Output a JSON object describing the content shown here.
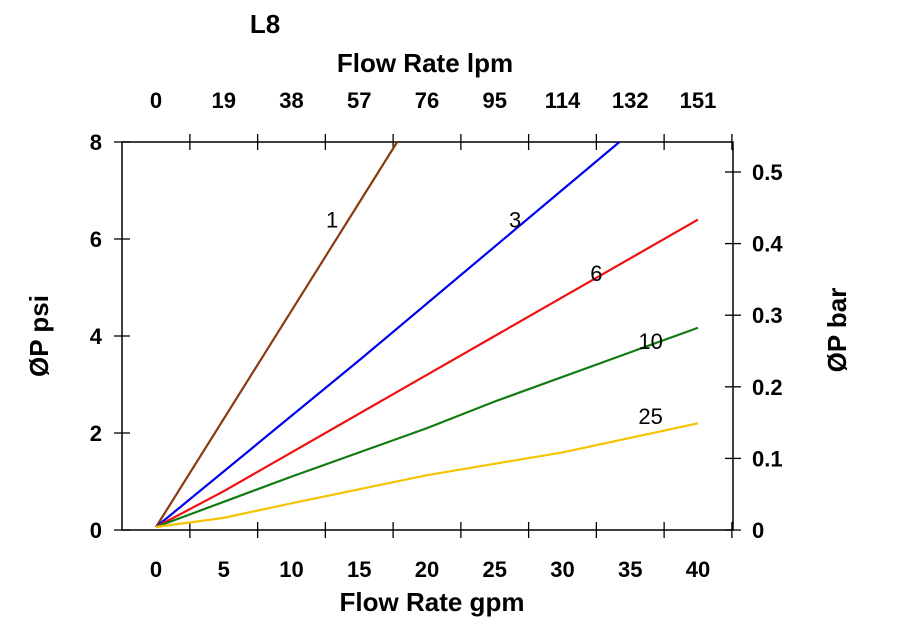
{
  "chart_data": {
    "type": "line",
    "title": "L8",
    "x_top_label": "Flow Rate lpm",
    "xlabel": "Flow Rate gpm",
    "ylabel": "ØP psi",
    "y_right_label": "ØP bar",
    "xlim": [
      0,
      40
    ],
    "ylim": [
      0,
      8
    ],
    "y_right_lim_bar": [
      0,
      0.5
    ],
    "x_ticks": [
      "0",
      "5",
      "10",
      "15",
      "20",
      "25",
      "30",
      "35",
      "40"
    ],
    "x_top_ticks": [
      "0",
      "19",
      "38",
      "57",
      "76",
      "95",
      "114",
      "132",
      "151"
    ],
    "y_ticks": [
      "0",
      "2",
      "4",
      "6",
      "8"
    ],
    "y_right_ticks": [
      "0",
      "0.1",
      "0.2",
      "0.3",
      "0.4",
      "0.5"
    ],
    "grid": false,
    "series": [
      {
        "name": "1",
        "color": "#8B3A0F",
        "x": [
          0,
          17.8
        ],
        "y": [
          0,
          8
        ],
        "label_at": [
          13,
          6.4
        ]
      },
      {
        "name": "3",
        "color": "#0000EE",
        "x": [
          0,
          15,
          34.2
        ],
        "y": [
          0,
          3.5,
          8
        ],
        "label_at": [
          26.5,
          6.4
        ]
      },
      {
        "name": "6",
        "color": "#EE1111",
        "x": [
          0,
          5,
          10,
          20,
          25,
          40
        ],
        "y": [
          0,
          0.8,
          1.6,
          3.2,
          4.0,
          6.4
        ],
        "label_at": [
          32.5,
          5.3
        ]
      },
      {
        "name": "10",
        "color": "#117A11",
        "x": [
          0,
          10,
          20,
          25,
          40
        ],
        "y": [
          0,
          1.1,
          2.1,
          2.65,
          4.17
        ],
        "label_at": [
          36.5,
          3.9
        ]
      },
      {
        "name": "25",
        "color": "#F5C400",
        "x": [
          0,
          5,
          10,
          20,
          30,
          40
        ],
        "y": [
          0,
          0.25,
          0.55,
          1.13,
          1.6,
          2.2
        ],
        "label_at": [
          36.5,
          2.35
        ]
      }
    ]
  }
}
